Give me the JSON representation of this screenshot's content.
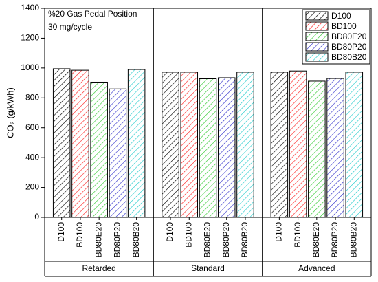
{
  "chart_data": {
    "type": "bar",
    "ylabel": "CO₂ (g/kWh)",
    "annotations": [
      "%20 Gas Pedal Position",
      "30 mg/cycle"
    ],
    "categories": [
      "Retarded",
      "Standard",
      "Advanced"
    ],
    "series": [
      {
        "name": "D100",
        "color": "#000000",
        "values": [
          995,
          972,
          972
        ]
      },
      {
        "name": "BD100",
        "color": "#ff2020",
        "values": [
          985,
          972,
          980
        ]
      },
      {
        "name": "BD80E20",
        "color": "#33cc33",
        "values": [
          905,
          928,
          912
        ]
      },
      {
        "name": "BD80P20",
        "color": "#3333cc",
        "values": [
          860,
          935,
          930
        ]
      },
      {
        "name": "BD80B20",
        "color": "#22cccc",
        "values": [
          990,
          972,
          972
        ]
      }
    ],
    "ylim": [
      0,
      1400
    ],
    "yticks": [
      0,
      200,
      400,
      600,
      800,
      1000,
      1200,
      1400
    ],
    "legend": "upper right",
    "grid": false
  }
}
